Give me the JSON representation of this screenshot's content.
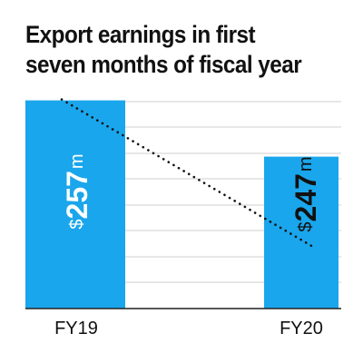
{
  "chart_data": {
    "type": "bar",
    "title": "Export earnings in first seven months of fiscal year",
    "xlabel": "",
    "ylabel": "",
    "categories": [
      "FY19",
      "FY20"
    ],
    "values": [
      257,
      247
    ],
    "value_labels": [
      {
        "currency": "$",
        "number": "257",
        "unit": "m"
      },
      {
        "currency": "$",
        "number": "247",
        "unit": "m"
      }
    ],
    "ylim": [
      220,
      260
    ],
    "grid": true,
    "trend_line": "dotted",
    "colors": {
      "bar": "#1aa6ec",
      "grid": "#cfcfcf",
      "axis": "#222222",
      "trend": "#111111",
      "label_inside": "#ffffff",
      "label_outside": "#111111",
      "title": "#111111",
      "tick": "#111111"
    }
  }
}
